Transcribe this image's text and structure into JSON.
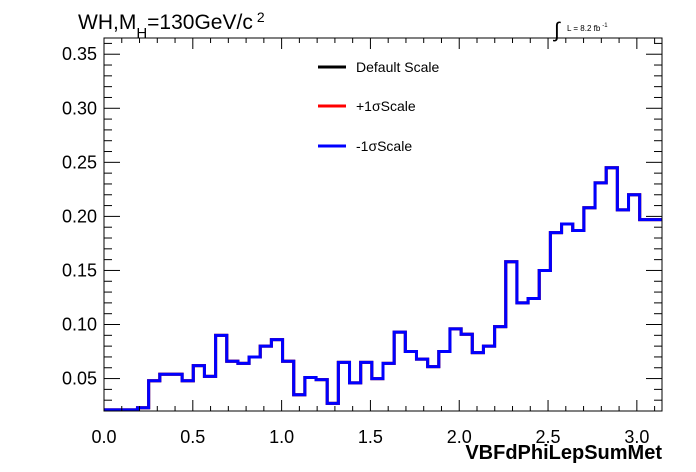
{
  "chart_data": {
    "type": "line",
    "title": "WH,M",
    "title_sub": "H",
    "title_rest": "=130GeV/c",
    "title_sup": "2",
    "lumi_integral": "∫",
    "lumi_label": "L = 8.2 fb",
    "lumi_sup": "-1",
    "xlabel": "VBFdPhiLepSumMet",
    "ylabel": "",
    "xlim": [
      0.0,
      3.1416
    ],
    "ylim": [
      0.02,
      0.365
    ],
    "x_ticks": [
      "0.0",
      "0.5",
      "1.0",
      "1.5",
      "2.0",
      "2.5",
      "3.0"
    ],
    "x_tick_values": [
      0.0,
      0.5,
      1.0,
      1.5,
      2.0,
      2.5,
      3.0
    ],
    "y_ticks": [
      "0.05",
      "0.10",
      "0.15",
      "0.20",
      "0.25",
      "0.30",
      "0.35"
    ],
    "y_tick_values": [
      0.05,
      0.1,
      0.15,
      0.2,
      0.25,
      0.3,
      0.35
    ],
    "grid": false,
    "legend_position": "top-center",
    "legend": [
      {
        "label": "Default Scale",
        "color": "#000000"
      },
      {
        "label": "+1σScale",
        "color": "#ff0000"
      },
      {
        "label": "-1σScale",
        "color": "#0000ff"
      }
    ],
    "bin_edges": [
      0.0,
      0.0628,
      0.1257,
      0.1885,
      0.2513,
      0.3142,
      0.377,
      0.4398,
      0.5027,
      0.5655,
      0.6283,
      0.6912,
      0.754,
      0.8168,
      0.8796,
      0.9425,
      1.0053,
      1.0681,
      1.131,
      1.1938,
      1.2566,
      1.3195,
      1.3823,
      1.4451,
      1.508,
      1.5708,
      1.6336,
      1.6965,
      1.7593,
      1.8221,
      1.885,
      1.9478,
      2.0106,
      2.0735,
      2.1363,
      2.1991,
      2.2619,
      2.3248,
      2.3876,
      2.4504,
      2.5133,
      2.5761,
      2.6389,
      2.7018,
      2.7646,
      2.8274,
      2.8903,
      2.9531,
      3.0159,
      3.0788,
      3.1416
    ],
    "series": [
      {
        "name": "Default Scale",
        "color": "#000000",
        "values": [
          0.021,
          0.021,
          0.021,
          0.023,
          0.048,
          0.054,
          0.054,
          0.048,
          0.062,
          0.052,
          0.09,
          0.066,
          0.064,
          0.07,
          0.08,
          0.086,
          0.066,
          0.035,
          0.051,
          0.049,
          0.027,
          0.065,
          0.046,
          0.065,
          0.05,
          0.064,
          0.093,
          0.075,
          0.068,
          0.061,
          0.075,
          0.096,
          0.091,
          0.074,
          0.08,
          0.098,
          0.158,
          0.12,
          0.124,
          0.15,
          0.185,
          0.193,
          0.187,
          0.208,
          0.231,
          0.245,
          0.206,
          0.22,
          0.197,
          0.197
        ]
      },
      {
        "name": "+1σScale",
        "color": "#ff0000",
        "values": [
          0.021,
          0.021,
          0.021,
          0.023,
          0.048,
          0.054,
          0.054,
          0.048,
          0.062,
          0.052,
          0.09,
          0.066,
          0.064,
          0.07,
          0.08,
          0.086,
          0.066,
          0.035,
          0.051,
          0.049,
          0.027,
          0.065,
          0.046,
          0.065,
          0.05,
          0.064,
          0.093,
          0.075,
          0.068,
          0.061,
          0.075,
          0.096,
          0.091,
          0.074,
          0.08,
          0.098,
          0.158,
          0.12,
          0.124,
          0.15,
          0.185,
          0.193,
          0.187,
          0.208,
          0.231,
          0.245,
          0.206,
          0.22,
          0.197,
          0.197
        ]
      },
      {
        "name": "-1σScale",
        "color": "#0000ff",
        "values": [
          0.021,
          0.021,
          0.021,
          0.023,
          0.048,
          0.054,
          0.054,
          0.048,
          0.062,
          0.052,
          0.09,
          0.066,
          0.064,
          0.07,
          0.08,
          0.086,
          0.066,
          0.035,
          0.051,
          0.049,
          0.027,
          0.065,
          0.046,
          0.065,
          0.05,
          0.064,
          0.093,
          0.075,
          0.068,
          0.061,
          0.075,
          0.096,
          0.091,
          0.074,
          0.08,
          0.098,
          0.158,
          0.12,
          0.124,
          0.15,
          0.185,
          0.193,
          0.187,
          0.208,
          0.231,
          0.245,
          0.206,
          0.22,
          0.197,
          0.197
        ]
      }
    ]
  }
}
